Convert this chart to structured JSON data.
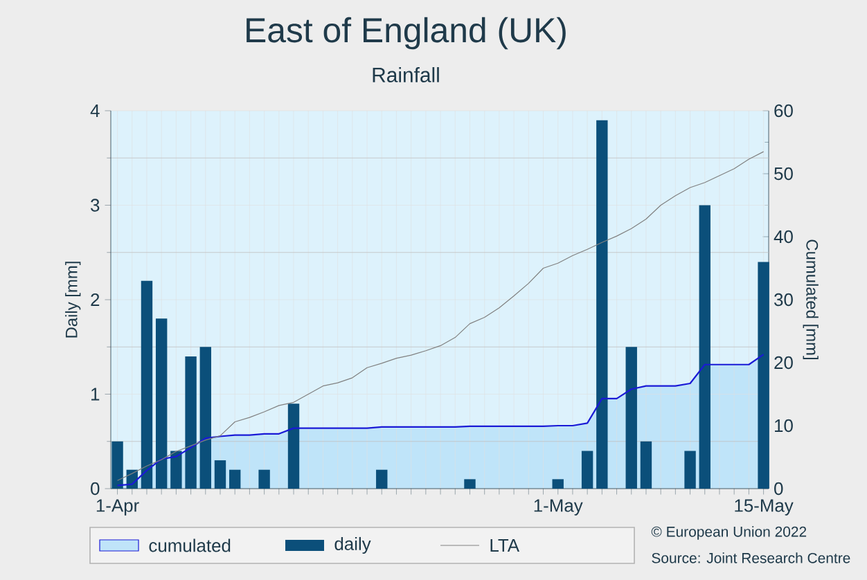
{
  "chart_data": {
    "type": "bar",
    "title": "East of England (UK)",
    "subtitle": "Rainfall",
    "ylabel": "Daily [mm]",
    "y2label": "Cumulated [mm]",
    "categories": [
      "1-Apr",
      null,
      null,
      null,
      null,
      null,
      null,
      null,
      null,
      null,
      null,
      null,
      null,
      null,
      null,
      null,
      null,
      null,
      null,
      null,
      null,
      null,
      null,
      null,
      null,
      null,
      null,
      null,
      null,
      null,
      "1-May",
      null,
      null,
      null,
      null,
      null,
      null,
      null,
      null,
      null,
      null,
      null,
      null,
      null,
      "15-May"
    ],
    "ylim": [
      0,
      4
    ],
    "yticks": [
      0,
      1,
      2,
      3,
      4
    ],
    "y2lim": [
      0,
      60
    ],
    "y2ticks": [
      0,
      10,
      20,
      30,
      40,
      50,
      60
    ],
    "grid": true,
    "legend": "bottom",
    "marker": "none",
    "series": [
      {
        "name": "cumulated",
        "type": "area",
        "axis": "y2",
        "color": "#bfe4f9",
        "values": [
          0.5,
          0.7,
          2.9,
          4.7,
          5.1,
          6.5,
          8.0,
          8.3,
          8.5,
          8.5,
          8.7,
          8.7,
          9.6,
          9.6,
          9.6,
          9.6,
          9.6,
          9.6,
          9.8,
          9.8,
          9.8,
          9.8,
          9.8,
          9.8,
          9.9,
          9.9,
          9.9,
          9.9,
          9.9,
          9.9,
          10.0,
          10.0,
          10.4,
          14.3,
          14.3,
          15.8,
          16.3,
          16.3,
          16.3,
          16.7,
          19.7,
          19.7,
          19.7,
          19.7,
          21.3
        ]
      },
      {
        "name": "daily",
        "color": "#0b4f7a",
        "values": [
          0.5,
          0.2,
          2.2,
          1.8,
          0.4,
          1.4,
          1.5,
          0.3,
          0.2,
          0,
          0.2,
          0,
          0.9,
          0,
          0,
          0,
          0,
          0,
          0.2,
          0,
          0,
          0,
          0,
          0,
          0.1,
          0,
          0,
          0,
          0,
          0,
          0.1,
          0,
          0.4,
          3.9,
          0,
          1.5,
          0.5,
          0,
          0,
          0.4,
          3.0,
          0,
          0,
          0,
          2.4
        ]
      },
      {
        "name": "LTA",
        "type": "line",
        "axis": "y2",
        "color": "#808080",
        "values": [
          1.3,
          2.4,
          3.6,
          4.6,
          5.9,
          6.8,
          7.7,
          8.4,
          10.6,
          11.3,
          12.2,
          13.2,
          13.7,
          15.0,
          16.3,
          16.8,
          17.6,
          19.2,
          19.9,
          20.7,
          21.2,
          21.9,
          22.7,
          24.0,
          26.2,
          27.2,
          28.7,
          30.6,
          32.6,
          35.0,
          35.8,
          37.0,
          38.0,
          39.1,
          40.1,
          41.3,
          42.8,
          45.0,
          46.5,
          47.8,
          48.6,
          49.7,
          50.8,
          52.3,
          53.5
        ]
      }
    ],
    "annotations": [
      "© European Union 2022",
      "Source: Joint Research Centre"
    ]
  }
}
